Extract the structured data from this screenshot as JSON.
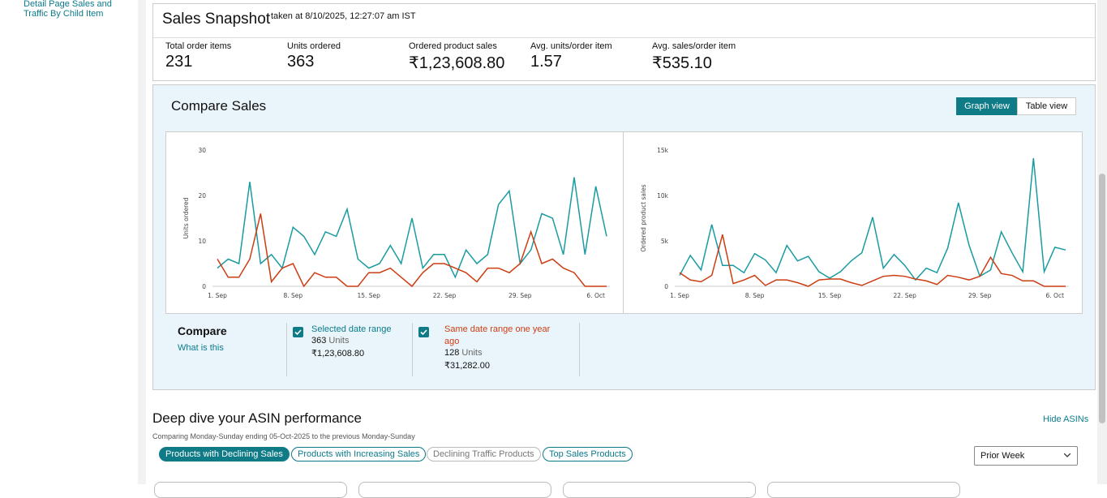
{
  "sidebar": {
    "link": "Detail Page Sales and Traffic By Child Item"
  },
  "snapshot": {
    "title": "Sales Snapshot",
    "timestamp": "taken at 8/10/2025, 12:27:07 am IST",
    "metrics": [
      {
        "label": "Total order items",
        "value": "231"
      },
      {
        "label": "Units ordered",
        "value": "363"
      },
      {
        "label": "Ordered product sales",
        "value": "₹1,23,608.80"
      },
      {
        "label": "Avg. units/order item",
        "value": "1.57"
      },
      {
        "label": "Avg. sales/order item",
        "value": "₹535.10"
      }
    ]
  },
  "compare": {
    "title": "Compare Sales",
    "views": [
      "Graph view",
      "Table view"
    ],
    "heading": "Compare",
    "help_link": "What is this",
    "ranges": [
      {
        "label": "Selected date range",
        "units": "363",
        "unit_label": "Units",
        "sales": "₹1,23,608.80"
      },
      {
        "label": "Same date range one year ago",
        "units": "128",
        "unit_label": "Units",
        "sales": "₹31,282.00"
      }
    ]
  },
  "chart_data": [
    {
      "type": "line",
      "y_label": "Units ordered",
      "categories": [
        "1. Sep",
        null,
        null,
        null,
        null,
        null,
        null,
        "8. Sep",
        null,
        null,
        null,
        null,
        null,
        null,
        "15. Sep",
        null,
        null,
        null,
        null,
        null,
        null,
        "22. Sep",
        null,
        null,
        null,
        null,
        null,
        null,
        "29. Sep",
        null,
        null,
        null,
        null,
        null,
        null,
        "6. Oct",
        null
      ],
      "ylim": [
        0,
        30
      ],
      "yticks": [
        0,
        10,
        20,
        30
      ],
      "series": [
        {
          "color": "#1a9ba1",
          "values": [
            4,
            6,
            5,
            23,
            5,
            7,
            4,
            13,
            11,
            7,
            12,
            11,
            17,
            6,
            4,
            5,
            9,
            5,
            15,
            4,
            7,
            7,
            2,
            8,
            5,
            7,
            18,
            21,
            5,
            8,
            16,
            15,
            7,
            24,
            7,
            22,
            11
          ]
        },
        {
          "color": "#cc3d12",
          "values": [
            6,
            2,
            2,
            6,
            16,
            1,
            4,
            5,
            0,
            3,
            2,
            2,
            0,
            0,
            3,
            3,
            4,
            2,
            0,
            3,
            5,
            5,
            4,
            3,
            1,
            4,
            4,
            3,
            5,
            12,
            5,
            6,
            4,
            3,
            0,
            0,
            0
          ]
        }
      ]
    },
    {
      "type": "line",
      "y_label": "Ordered product sales",
      "categories": [
        "1. Sep",
        null,
        null,
        null,
        null,
        null,
        null,
        "8. Sep",
        null,
        null,
        null,
        null,
        null,
        null,
        "15. Sep",
        null,
        null,
        null,
        null,
        null,
        null,
        "22. Sep",
        null,
        null,
        null,
        null,
        null,
        null,
        "29. Sep",
        null,
        null,
        null,
        null,
        null,
        null,
        "6. Oct",
        null
      ],
      "ylim": [
        0,
        15000
      ],
      "yticks": [
        0,
        {
          "value": 5000,
          "label": "5k"
        },
        {
          "value": 10000,
          "label": "10k"
        },
        {
          "value": 15000,
          "label": "15k"
        }
      ],
      "series": [
        {
          "color": "#1a9ba1",
          "values": [
            1200,
            3400,
            1800,
            6800,
            2300,
            2300,
            1500,
            3600,
            2900,
            1500,
            4500,
            2800,
            3300,
            1600,
            900,
            1600,
            2800,
            3700,
            7600,
            2000,
            3500,
            2300,
            700,
            2000,
            1500,
            4200,
            9200,
            4500,
            1100,
            1800,
            6000,
            3700,
            1600,
            14100,
            1600,
            4300,
            4000
          ]
        },
        {
          "color": "#cc3d12",
          "values": [
            1500,
            700,
            500,
            1200,
            5700,
            300,
            700,
            1200,
            100,
            700,
            700,
            400,
            0,
            700,
            800,
            800,
            400,
            100,
            600,
            1100,
            1200,
            1100,
            800,
            600,
            200,
            1200,
            1000,
            700,
            1100,
            3200,
            1400,
            1200,
            600,
            600,
            0,
            0,
            0
          ]
        }
      ]
    }
  ],
  "deep_dive": {
    "title": "Deep dive your ASIN performance",
    "subtitle": "Comparing Monday-Sunday ending 05-Oct-2025 to the previous Monday-Sunday",
    "toggle": "Hide ASINs",
    "filters": [
      "Products with Declining Sales",
      "Products with Increasing Sales",
      "Declining Traffic Products",
      "Top Sales Products"
    ],
    "period": "Prior Week"
  }
}
